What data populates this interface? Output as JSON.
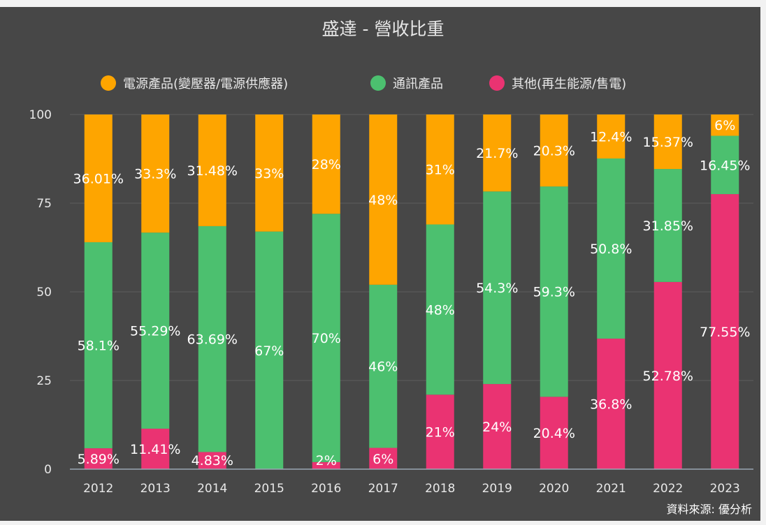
{
  "chart_data": {
    "type": "bar",
    "stacked": true,
    "title": "盛達 - 營收比重",
    "categories": [
      "2012",
      "2013",
      "2014",
      "2015",
      "2016",
      "2017",
      "2018",
      "2019",
      "2020",
      "2021",
      "2022",
      "2023"
    ],
    "series": [
      {
        "name": "其他(再生能源/售電)",
        "color": "#ea3372",
        "values": [
          5.89,
          11.41,
          4.83,
          0,
          2,
          6,
          21,
          24,
          20.4,
          36.8,
          52.78,
          77.55
        ],
        "labels": [
          "5.89%",
          "11.41%",
          "4.83%",
          "",
          "2%",
          "6%",
          "21%",
          "24%",
          "20.4%",
          "36.8%",
          "52.78%",
          "77.55%"
        ]
      },
      {
        "name": "通訊產品",
        "color": "#4cc06f",
        "values": [
          58.1,
          55.29,
          63.69,
          67,
          70,
          46,
          48,
          54.3,
          59.3,
          50.8,
          31.85,
          16.45
        ],
        "labels": [
          "58.1%",
          "55.29%",
          "63.69%",
          "67%",
          "70%",
          "46%",
          "48%",
          "54.3%",
          "59.3%",
          "50.8%",
          "31.85%",
          "16.45%"
        ]
      },
      {
        "name": "電源產品(變壓器/電源供應器)",
        "color": "#fea500",
        "values": [
          36.01,
          33.3,
          31.48,
          33,
          28,
          48,
          31,
          21.7,
          20.3,
          12.4,
          15.37,
          6
        ],
        "labels": [
          "36.01%",
          "33.3%",
          "31.48%",
          "33%",
          "28%",
          "48%",
          "31%",
          "21.7%",
          "20.3%",
          "12.4%",
          "15.37%",
          "6%"
        ]
      }
    ],
    "legend": [
      {
        "name": "電源產品(變壓器/電源供應器)",
        "color": "#fea500"
      },
      {
        "name": "通訊產品",
        "color": "#4cc06f"
      },
      {
        "name": "其他(再生能源/售電)",
        "color": "#ea3372"
      }
    ],
    "ylim": [
      0,
      100
    ],
    "yticks": [
      0,
      25,
      50,
      75,
      100
    ],
    "grid": true,
    "legend_position": "top",
    "xlabel": "",
    "ylabel": ""
  },
  "source": "資料來源: 優分析"
}
